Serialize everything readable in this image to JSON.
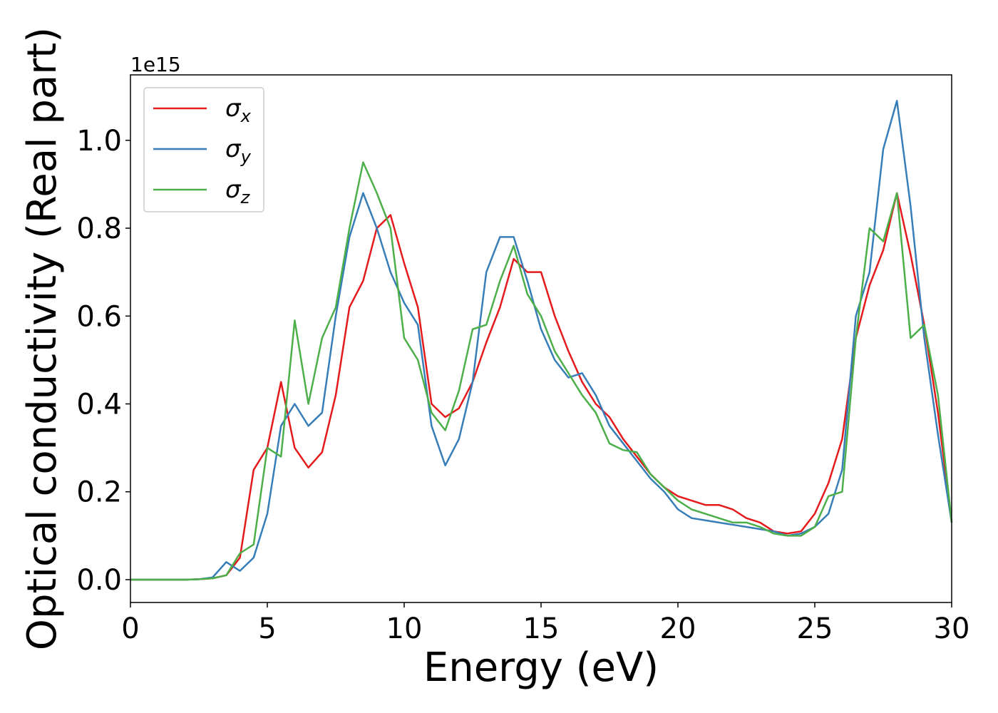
{
  "chart_data": {
    "type": "line",
    "xlabel": "Energy (eV)",
    "ylabel": "Optical conductivity (Real part)",
    "y_offset_label": "1e15",
    "xlim": [
      0,
      30
    ],
    "ylim": [
      -0.052,
      1.149
    ],
    "xticks": [
      0,
      5,
      10,
      15,
      20,
      25,
      30
    ],
    "yticks": [
      {
        "value": 0,
        "label": "0.0"
      },
      0.2,
      0.4,
      0.6,
      0.8,
      {
        "value": 1,
        "label": "1.0"
      }
    ],
    "grid": false,
    "legend": "upper left",
    "x": [
      0,
      0.5,
      1,
      1.5,
      2,
      2.5,
      3,
      3.5,
      4,
      4.5,
      5,
      5.5,
      6,
      6.5,
      7,
      7.5,
      8,
      8.5,
      9,
      9.5,
      10,
      10.5,
      11,
      11.5,
      12,
      12.5,
      13,
      13.5,
      14,
      14.5,
      15,
      15.5,
      16,
      16.5,
      17,
      17.5,
      18,
      18.5,
      19,
      19.5,
      20,
      20.5,
      21,
      21.5,
      22,
      22.5,
      23,
      23.5,
      24,
      24.5,
      25,
      25.5,
      26,
      26.5,
      27,
      27.5,
      28,
      28.5,
      29,
      29.5,
      30
    ],
    "series": [
      {
        "name": "σx",
        "color": "#e41a1c",
        "values": [
          0,
          0,
          0,
          0,
          0,
          0.001,
          0.003,
          0.01,
          0.05,
          0.25,
          0.3,
          0.45,
          0.3,
          0.255,
          0.29,
          0.42,
          0.62,
          0.68,
          0.8,
          0.83,
          0.72,
          0.62,
          0.4,
          0.37,
          0.39,
          0.45,
          0.54,
          0.62,
          0.73,
          0.7,
          0.7,
          0.6,
          0.52,
          0.45,
          0.4,
          0.37,
          0.32,
          0.28,
          0.24,
          0.21,
          0.19,
          0.18,
          0.17,
          0.17,
          0.16,
          0.14,
          0.13,
          0.11,
          0.105,
          0.11,
          0.15,
          0.22,
          0.32,
          0.55,
          0.67,
          0.75,
          0.88,
          0.74,
          0.58,
          0.38,
          0.13
        ]
      },
      {
        "name": "σy",
        "color": "#377eb8",
        "values": [
          0,
          0,
          0,
          0,
          0,
          0.001,
          0.005,
          0.04,
          0.02,
          0.05,
          0.15,
          0.35,
          0.4,
          0.35,
          0.38,
          0.6,
          0.78,
          0.88,
          0.8,
          0.7,
          0.63,
          0.58,
          0.35,
          0.26,
          0.32,
          0.45,
          0.7,
          0.78,
          0.78,
          0.68,
          0.57,
          0.5,
          0.46,
          0.47,
          0.42,
          0.35,
          0.31,
          0.27,
          0.23,
          0.2,
          0.16,
          0.14,
          0.135,
          0.13,
          0.125,
          0.12,
          0.115,
          0.11,
          0.1,
          0.105,
          0.12,
          0.15,
          0.25,
          0.6,
          0.7,
          0.98,
          1.09,
          0.85,
          0.55,
          0.33,
          0.13
        ]
      },
      {
        "name": "σz",
        "color": "#4daf4a",
        "values": [
          0,
          0,
          0,
          0,
          0,
          0.001,
          0.003,
          0.01,
          0.06,
          0.08,
          0.3,
          0.28,
          0.59,
          0.4,
          0.55,
          0.62,
          0.8,
          0.95,
          0.88,
          0.8,
          0.55,
          0.5,
          0.38,
          0.34,
          0.43,
          0.57,
          0.58,
          0.68,
          0.76,
          0.65,
          0.6,
          0.52,
          0.47,
          0.42,
          0.38,
          0.31,
          0.295,
          0.29,
          0.24,
          0.21,
          0.18,
          0.16,
          0.15,
          0.14,
          0.13,
          0.13,
          0.12,
          0.105,
          0.1,
          0.1,
          0.12,
          0.19,
          0.2,
          0.55,
          0.8,
          0.77,
          0.88,
          0.55,
          0.58,
          0.42,
          0.13
        ]
      }
    ]
  }
}
